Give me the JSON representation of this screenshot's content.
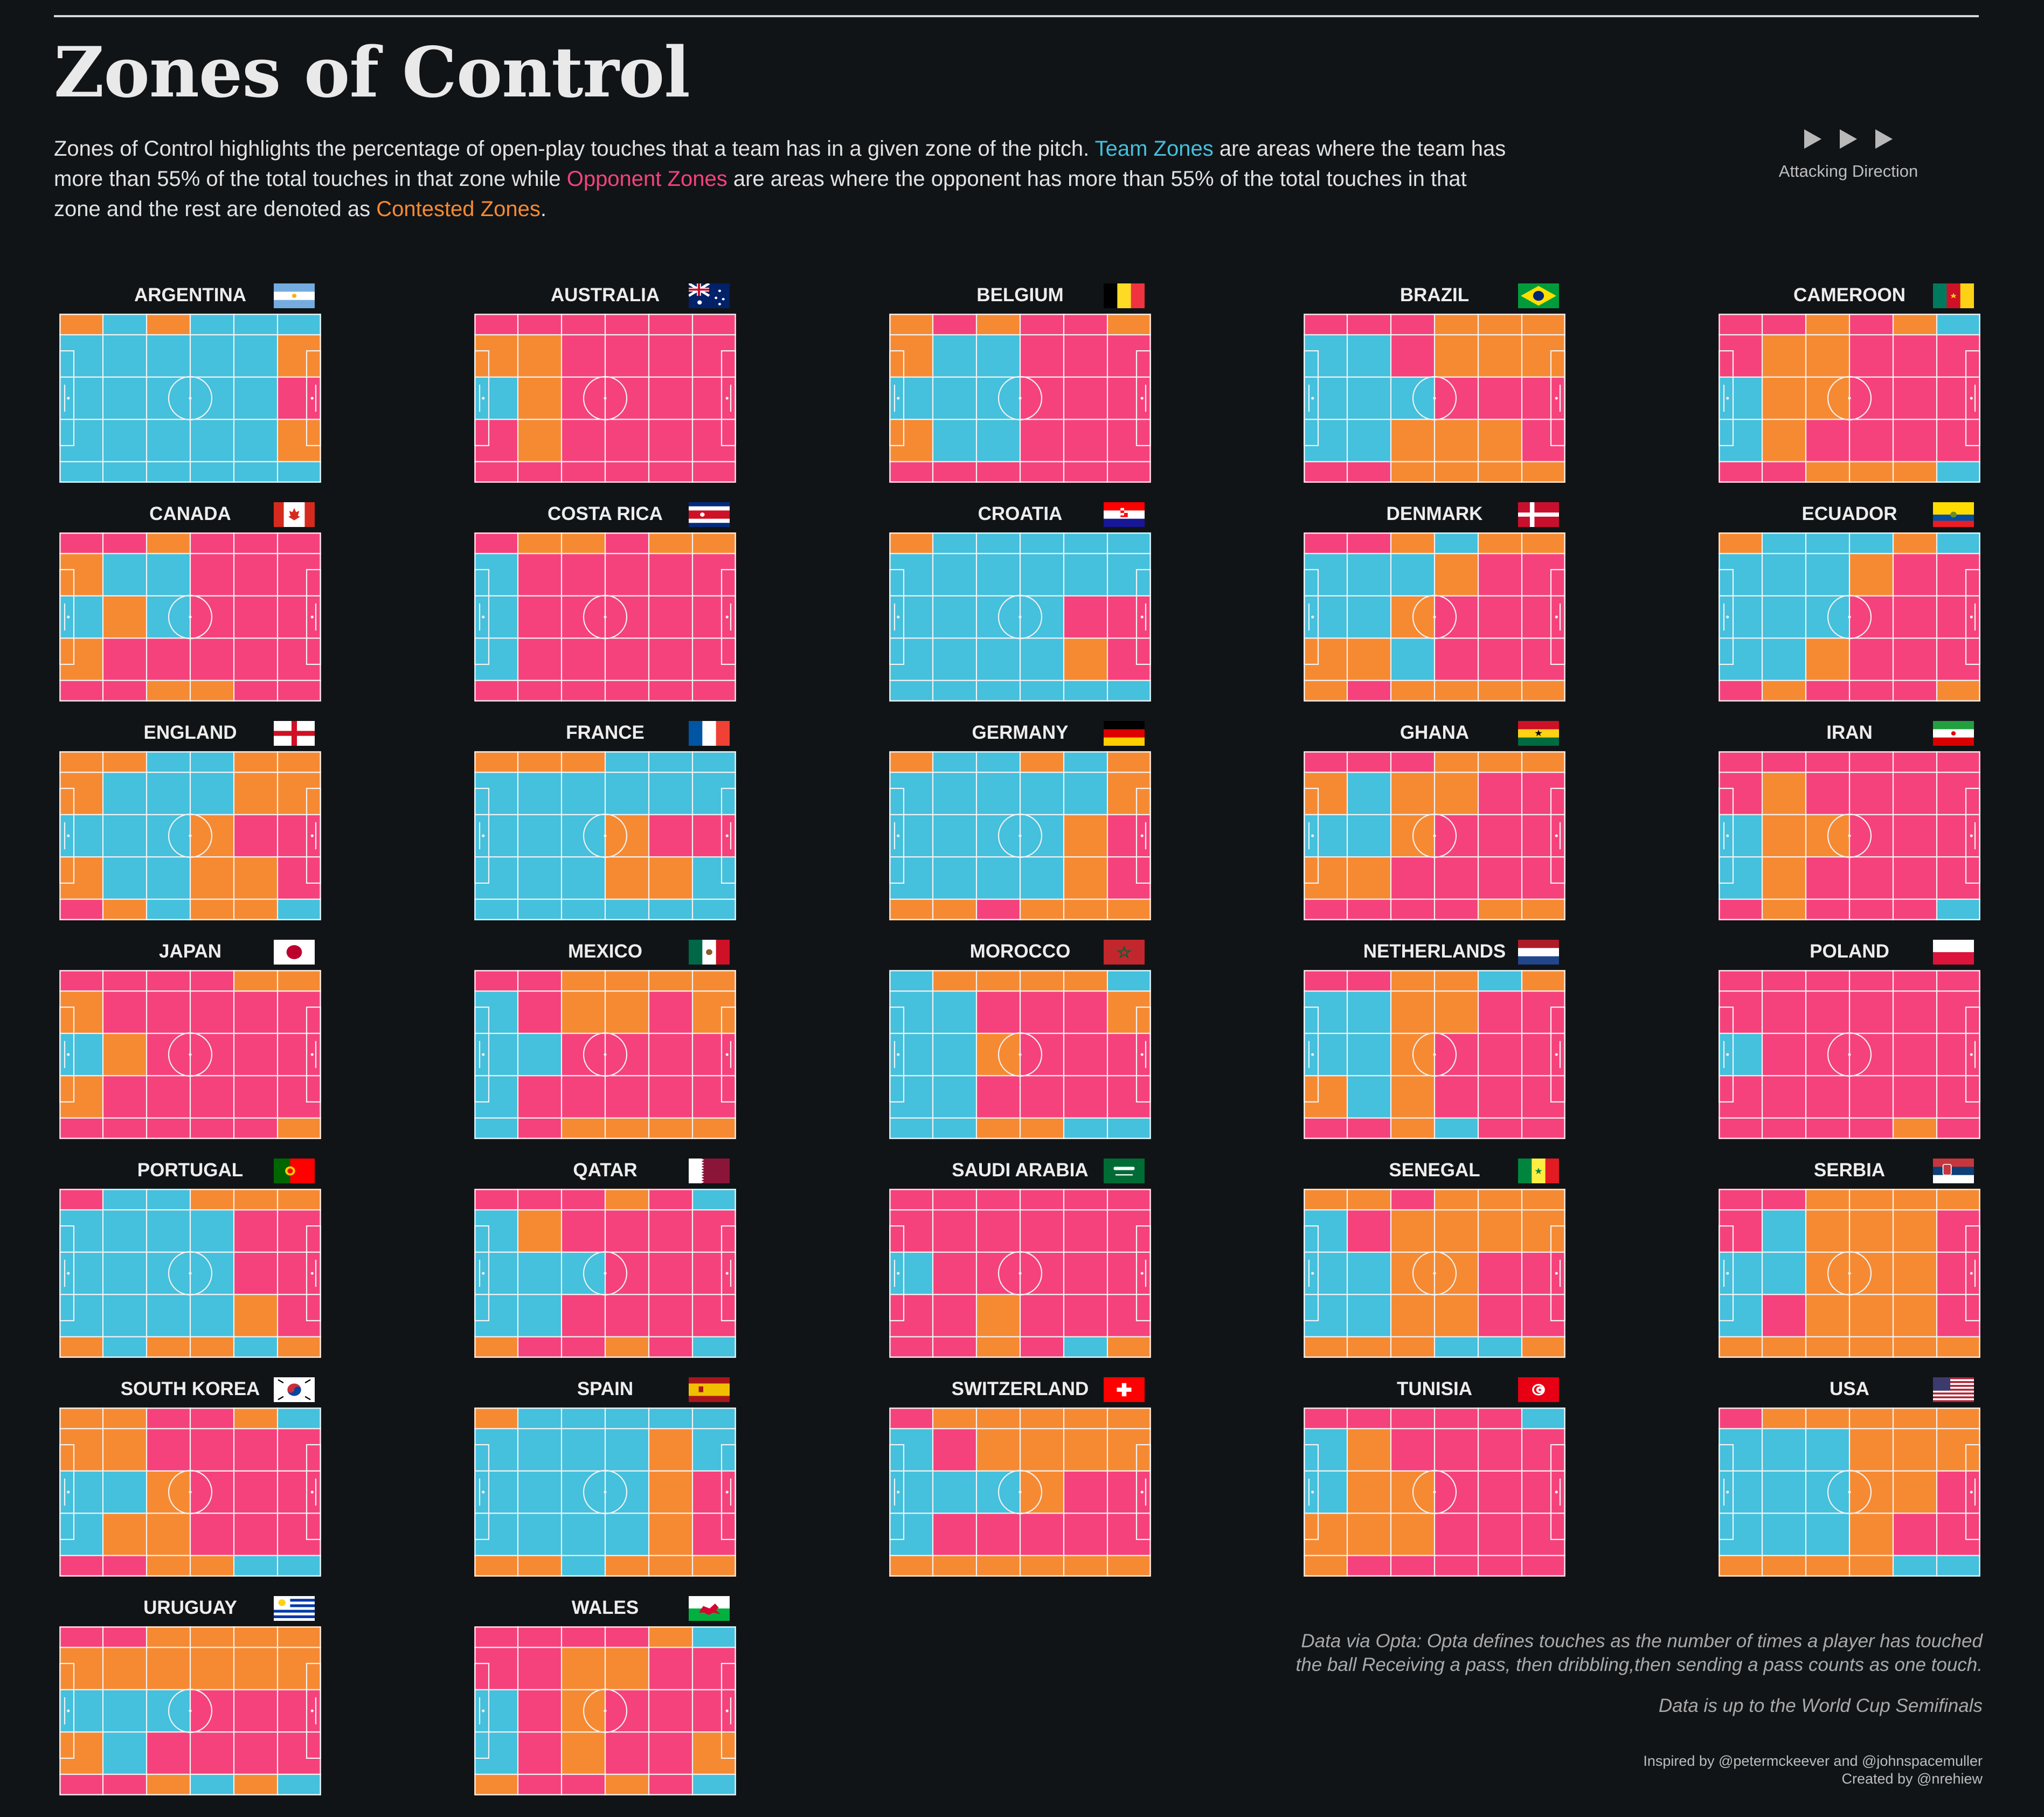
{
  "header": {
    "title": "Zones of Control",
    "intro_1": "Zones of Control highlights the percentage of open-play touches that a team has in a given zone of the pitch. ",
    "team_zones": "Team Zones",
    "intro_2": " are areas where the team has more than 55% of the total touches in that zone while ",
    "opponent_zones": "Opponent Zones",
    "intro_3": " are areas where the opponent has more than 55% of the total touches in that zone and the rest are denoted as ",
    "contested_zones": "Contested Zones",
    "intro_4": "."
  },
  "attacking_direction_label": "Attacking Direction",
  "colors": {
    "background": "#111417",
    "team": "#45c0dd",
    "opponent": "#f5427c",
    "contested": "#f68a33",
    "lines": "#f2f2f2"
  },
  "footer": {
    "note": "Data via Opta: Opta defines touches as the number of times a player has touched the ball Receiving a pass, then dribbling,then sending a pass counts as one touch.",
    "cutoff": "Data is up to the World Cup Semifinals",
    "inspired": "Inspired by @petermckeever and @johnspacemuller",
    "created": "Created by @nrehiew"
  },
  "chart_data": {
    "type": "heatmap",
    "legend_codes": {
      "T": "Team Zones",
      "O": "Opponent Zones",
      "C": "Contested Zones"
    },
    "grid": {
      "columns": 6,
      "rows": 5,
      "row_heights_relative": [
        1,
        2,
        2,
        2,
        1
      ]
    },
    "teams": [
      {
        "name": "ARGENTINA",
        "zones": [
          "CTCTTT",
          "TTTTTC",
          "TTTTTO",
          "TTTTTC",
          "TTTTTT"
        ]
      },
      {
        "name": "AUSTRALIA",
        "zones": [
          "OOOOOO",
          "CCOOOO",
          "TCOOOO",
          "OCOOOO",
          "OOOOOO"
        ]
      },
      {
        "name": "BELGIUM",
        "zones": [
          "COCOOC",
          "CTTOOO",
          "TTTOOO",
          "CTTOOO",
          "OOOOOO"
        ]
      },
      {
        "name": "BRAZIL",
        "zones": [
          "OOOCCC",
          "TTOCCC",
          "TTTOOO",
          "TTCCCO",
          "OOCCCC"
        ]
      },
      {
        "name": "CAMEROON",
        "zones": [
          "OOCOCT",
          "OCCOOO",
          "TCCOOO",
          "TCOOOO",
          "OOCCCT"
        ]
      },
      {
        "name": "CANADA",
        "zones": [
          "OOCOOO",
          "CTTOOO",
          "TCTOOO",
          "COOOOO",
          "OOCCOO"
        ]
      },
      {
        "name": "COSTA RICA",
        "zones": [
          "OCCOCC",
          "TOOOOO",
          "TOOOOO",
          "TOOOOO",
          "OOOOOO"
        ]
      },
      {
        "name": "CROATIA",
        "zones": [
          "CTTTTT",
          "TTTTTT",
          "TTTTOO",
          "TTTTCO",
          "TTTTTT"
        ]
      },
      {
        "name": "DENMARK",
        "zones": [
          "OOCTCC",
          "TTTCOO",
          "TTCOOO",
          "CCTOOO",
          "COCCCC"
        ]
      },
      {
        "name": "ECUADOR",
        "zones": [
          "CTTTCT",
          "TTTCOO",
          "TTTOOO",
          "TTCOOO",
          "OCOOOC"
        ]
      },
      {
        "name": "ENGLAND",
        "zones": [
          "CCTTCC",
          "CTTTCC",
          "TTTCOO",
          "CTTCCO",
          "OCTCCT"
        ]
      },
      {
        "name": "FRANCE",
        "zones": [
          "CCCTTT",
          "TTTTTT",
          "TTTCOO",
          "TTTCCT",
          "TTTTTT"
        ]
      },
      {
        "name": "GERMANY",
        "zones": [
          "CTTCTC",
          "TTTTTC",
          "TTTTCO",
          "TTTTCO",
          "CCOCCC"
        ]
      },
      {
        "name": "GHANA",
        "zones": [
          "OOOCCC",
          "CTCCOO",
          "TTCOOO",
          "CCOOOO",
          "OOOOCC"
        ]
      },
      {
        "name": "IRAN",
        "zones": [
          "OOOOOO",
          "OCOOOO",
          "TCCOOO",
          "TCOOOO",
          "OCOOOT"
        ]
      },
      {
        "name": "JAPAN",
        "zones": [
          "OOOOCC",
          "COOOOO",
          "TCOOOO",
          "COOOOO",
          "OOOOOC"
        ]
      },
      {
        "name": "MEXICO",
        "zones": [
          "OOCCCC",
          "TOCCOC",
          "TTOOOO",
          "TOOOOO",
          "TOCCCC"
        ]
      },
      {
        "name": "MOROCCO",
        "zones": [
          "TCCCCT",
          "TTOOOC",
          "TTCOOO",
          "TTOOOO",
          "TTCCTT"
        ]
      },
      {
        "name": "NETHERLANDS",
        "zones": [
          "OOCCTC",
          "TTCCOO",
          "TTCOOO",
          "CTCOOO",
          "OOCTOO"
        ]
      },
      {
        "name": "POLAND",
        "zones": [
          "OOOOOO",
          "OOOOOO",
          "TOOOOO",
          "OOOOOO",
          "OOOOCO"
        ]
      },
      {
        "name": "PORTUGAL",
        "zones": [
          "OTTCCC",
          "TTTTOO",
          "TTTTOO",
          "TTTTCO",
          "CTCCTC"
        ]
      },
      {
        "name": "QATAR",
        "zones": [
          "OOOCOT",
          "TCOOOO",
          "TTTOOO",
          "TTOOOO",
          "COOCOT"
        ]
      },
      {
        "name": "SAUDI ARABIA",
        "zones": [
          "OOOOOO",
          "OOOOOO",
          "TOOOOO",
          "OOCOOO",
          "OOCOTC"
        ]
      },
      {
        "name": "SENEGAL",
        "zones": [
          "CCOCCC",
          "TOCCCC",
          "TTCCOO",
          "TTCCOO",
          "CCCTTC"
        ]
      },
      {
        "name": "SERBIA",
        "zones": [
          "OOCCCC",
          "OTCCCO",
          "TTCCCO",
          "TOCCCO",
          "CCCCCC"
        ]
      },
      {
        "name": "SOUTH KOREA",
        "zones": [
          "CCOOCT",
          "CCOOOO",
          "TTCOOO",
          "TCCOOO",
          "OOCCTT"
        ]
      },
      {
        "name": "SPAIN",
        "zones": [
          "CTTTTT",
          "TTTTCT",
          "TTTTCO",
          "TTTTCO",
          "CCTCCC"
        ]
      },
      {
        "name": "SWITZERLAND",
        "zones": [
          "OCCCCC",
          "TOCCCC",
          "TTTCOO",
          "TOOOOO",
          "CCCCCC"
        ]
      },
      {
        "name": "TUNISIA",
        "zones": [
          "OOOOOT",
          "TCOOOO",
          "TCCOOO",
          "CCCOOO",
          "COOOOO"
        ]
      },
      {
        "name": "USA",
        "zones": [
          "OCCCCC",
          "TTTCCC",
          "TTTCCO",
          "TTTCOO",
          "CCCCTT"
        ]
      },
      {
        "name": "URUGUAY",
        "zones": [
          "OOCCCC",
          "CCCCCC",
          "TTTOOO",
          "CTOOOO",
          "OOCTCT"
        ]
      },
      {
        "name": "WALES",
        "zones": [
          "OOOOCT",
          "OOCCOO",
          "TOCOOO",
          "TOCOOC",
          "COOCOT"
        ]
      }
    ]
  }
}
